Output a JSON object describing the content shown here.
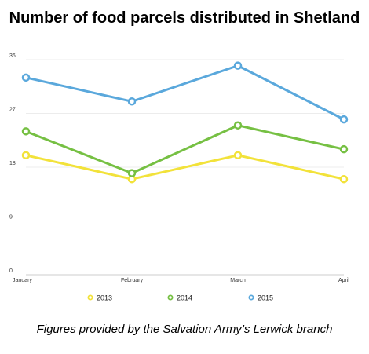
{
  "title": "Number of food parcels distributed in Shetland",
  "caption": "Figures provided by the Salvation Army’s Lerwick branch",
  "chart_data": {
    "type": "line",
    "categories": [
      "January",
      "February",
      "March",
      "April"
    ],
    "ylim": [
      0,
      36
    ],
    "yticks": [
      "0",
      "9",
      "18",
      "27",
      "36"
    ],
    "grid": true,
    "legend_position": "bottom",
    "series": [
      {
        "name": "2013",
        "color": "#f2e23a",
        "values": [
          20,
          16,
          20,
          16
        ]
      },
      {
        "name": "2014",
        "color": "#76c043",
        "values": [
          24,
          17,
          25,
          21
        ]
      },
      {
        "name": "2015",
        "color": "#5aa8dc",
        "values": [
          33,
          29,
          35,
          26
        ]
      }
    ]
  }
}
